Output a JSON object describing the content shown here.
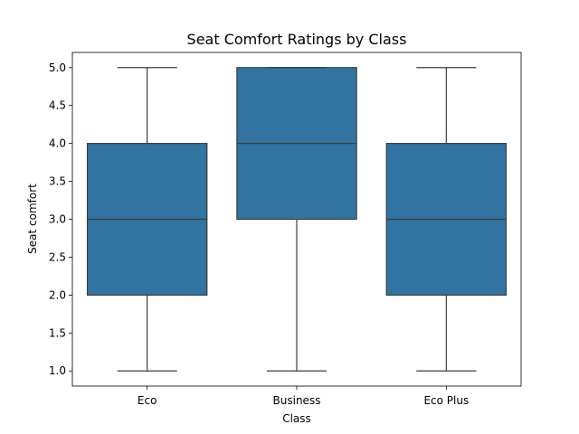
{
  "chart_data": {
    "type": "box",
    "title": "Seat Comfort Ratings by Class",
    "xlabel": "Class",
    "ylabel": "Seat comfort",
    "categories": [
      "Eco",
      "Business",
      "Eco Plus"
    ],
    "boxes": [
      {
        "category": "Eco",
        "min": 1.0,
        "q1": 2.0,
        "median": 3.0,
        "q3": 4.0,
        "max": 5.0
      },
      {
        "category": "Business",
        "min": 1.0,
        "q1": 3.0,
        "median": 4.0,
        "q3": 5.0,
        "max": 5.0
      },
      {
        "category": "Eco Plus",
        "min": 1.0,
        "q1": 2.0,
        "median": 3.0,
        "q3": 4.0,
        "max": 5.0
      }
    ],
    "ylim": [
      0.8,
      5.2
    ],
    "yticks": [
      "1.0",
      "1.5",
      "2.0",
      "2.5",
      "3.0",
      "3.5",
      "4.0",
      "4.5",
      "5.0"
    ],
    "box_color": "#3274a1",
    "line_color": "#3d3d3d",
    "grid": false,
    "legend": "none"
  }
}
